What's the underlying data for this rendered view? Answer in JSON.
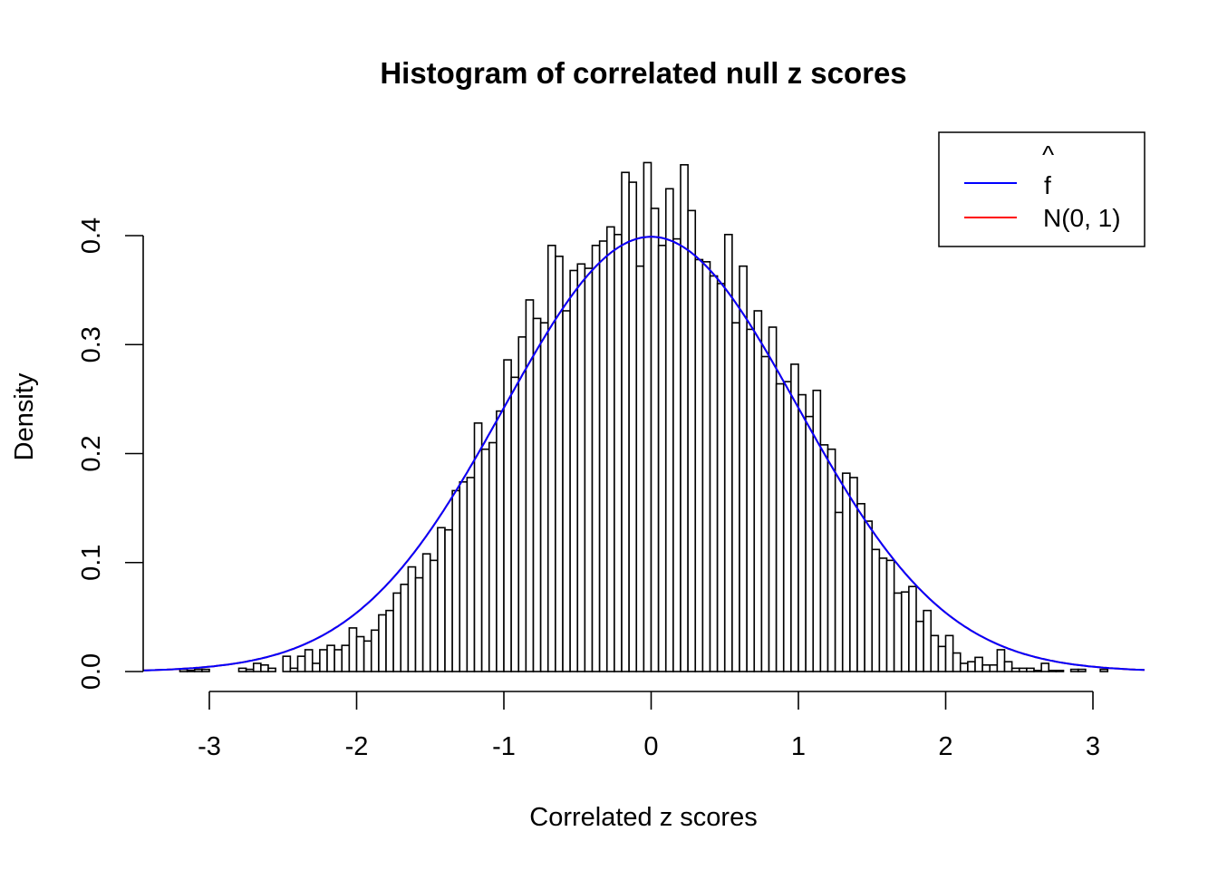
{
  "chart_data": {
    "type": "bar",
    "title": "Histogram of correlated null z scores",
    "xlabel": "Correlated z scores",
    "ylabel": "Density",
    "bin_start": -3.2,
    "bin_width": 0.05,
    "values": [
      0.002,
      0.001,
      0.002,
      0.002,
      0,
      0,
      0,
      0,
      0.003,
      0.002,
      0.0075,
      0.006,
      0.003,
      0,
      0.014,
      0.003,
      0.014,
      0.02,
      0.0075,
      0.02,
      0.024,
      0.02,
      0.024,
      0.04,
      0.032,
      0.028,
      0.038,
      0.052,
      0.056,
      0.072,
      0.08,
      0.096,
      0.086,
      0.108,
      0.102,
      0.132,
      0.13,
      0.166,
      0.174,
      0.178,
      0.228,
      0.204,
      0.21,
      0.239,
      0.286,
      0.27,
      0.307,
      0.341,
      0.324,
      0.32,
      0.391,
      0.381,
      0.331,
      0.368,
      0.374,
      0.37,
      0.391,
      0.395,
      0.408,
      0.401,
      0.458,
      0.449,
      0.372,
      0.467,
      0.425,
      0.391,
      0.443,
      0.397,
      0.465,
      0.423,
      0.378,
      0.376,
      0.363,
      0.356,
      0.401,
      0.32,
      0.372,
      0.314,
      0.331,
      0.289,
      0.316,
      0.264,
      0.266,
      0.282,
      0.254,
      0.234,
      0.258,
      0.208,
      0.204,
      0.146,
      0.182,
      0.178,
      0.154,
      0.138,
      0.112,
      0.104,
      0.102,
      0.072,
      0.073,
      0.078,
      0.046,
      0.056,
      0.033,
      0.023,
      0.033,
      0.017,
      0.0075,
      0.009,
      0.013,
      0.006,
      0.006,
      0.02,
      0.009,
      0.003,
      0.003,
      0.003,
      0.001,
      0.0075,
      0.001,
      0.001,
      0,
      0.002,
      0.002,
      0,
      0,
      0.002
    ],
    "xlim": [
      -3.45,
      3.35
    ],
    "ylim": [
      0,
      0.4
    ],
    "x_ticks": [
      -3,
      -2,
      -1,
      0,
      1,
      2,
      3
    ],
    "x_tick_labels": [
      "-3",
      "-2",
      "-1",
      "0",
      "1",
      "2",
      "3"
    ],
    "y_ticks": [
      0,
      0.1,
      0.2,
      0.3,
      0.4
    ],
    "y_tick_labels": [
      "0.0",
      "0.1",
      "0.2",
      "0.3",
      "0.4"
    ],
    "curves": [
      {
        "name": "f-hat",
        "label": "f",
        "label_accent": "^",
        "color": "#0000ff",
        "mean": 0,
        "sd": 1
      },
      {
        "name": "N(0, 1)",
        "label": "N(0, 1)",
        "color": "#ff0000",
        "mean": 0,
        "sd": 1
      }
    ],
    "legend_position": "top-right",
    "grid": false
  }
}
